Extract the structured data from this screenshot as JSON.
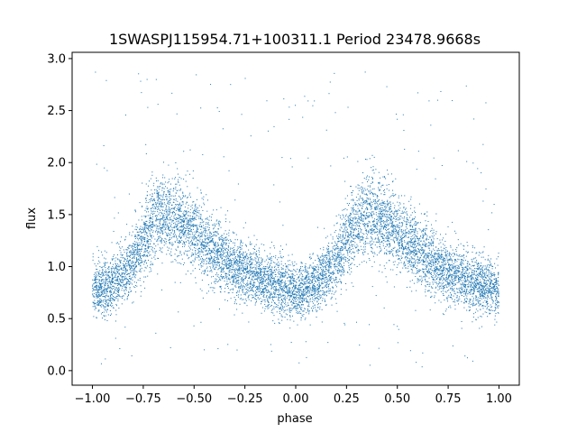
{
  "chart_data": {
    "type": "scatter",
    "title": "1SWASPJ115954.71+100311.1 Period 23478.9668s",
    "xlabel": "phase",
    "ylabel": "flux",
    "xlim": [
      -1.1,
      1.1
    ],
    "ylim": [
      -0.14,
      3.06
    ],
    "xticks": [
      -1.0,
      -0.75,
      -0.5,
      -0.25,
      0.0,
      0.25,
      0.5,
      0.75,
      1.0
    ],
    "xtick_labels": [
      "−1.00",
      "−0.75",
      "−0.50",
      "−0.25",
      "0.00",
      "0.25",
      "0.50",
      "0.75",
      "1.00"
    ],
    "yticks": [
      0.0,
      0.5,
      1.0,
      1.5,
      2.0,
      2.5,
      3.0
    ],
    "ytick_labels": [
      "0.0",
      "0.5",
      "1.0",
      "1.5",
      "2.0",
      "2.5",
      "3.0"
    ],
    "grid": false,
    "marker_color": "#1f77b4",
    "x_range_of_points": [
      -1.0,
      1.0
    ],
    "light_curve_profile": {
      "phase": [
        0.0,
        0.1,
        0.2,
        0.3,
        0.35,
        0.4,
        0.5,
        0.6,
        0.7,
        0.8,
        0.9,
        1.0
      ],
      "flux": [
        0.78,
        0.82,
        1.05,
        1.42,
        1.5,
        1.48,
        1.32,
        1.15,
        1.0,
        0.9,
        0.83,
        0.78
      ]
    }
  }
}
